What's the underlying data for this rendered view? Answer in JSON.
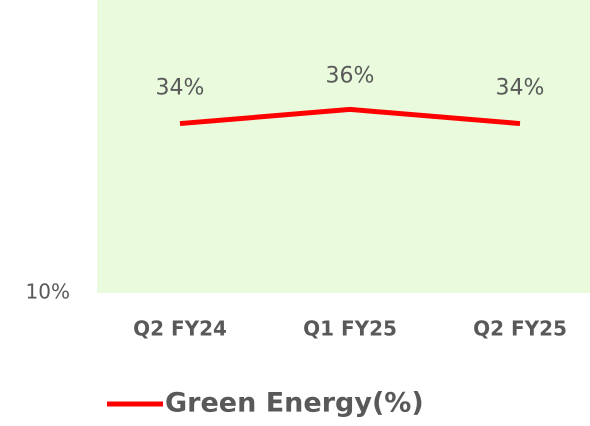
{
  "chart_data": {
    "type": "line",
    "categories": [
      "Q2 FY24",
      "Q1 FY25",
      "Q2 FY25"
    ],
    "series": [
      {
        "name": "Green Energy(%)",
        "color": "#ff0000",
        "values": [
          34,
          36,
          34
        ],
        "value_labels": [
          "34%",
          "36%",
          "34%"
        ]
      }
    ],
    "ylim": [
      10,
      51.5
    ],
    "yticks": [
      {
        "value": 10,
        "label": "10%"
      }
    ],
    "plot_background": "#e9fbdc",
    "legend": "bottom"
  }
}
